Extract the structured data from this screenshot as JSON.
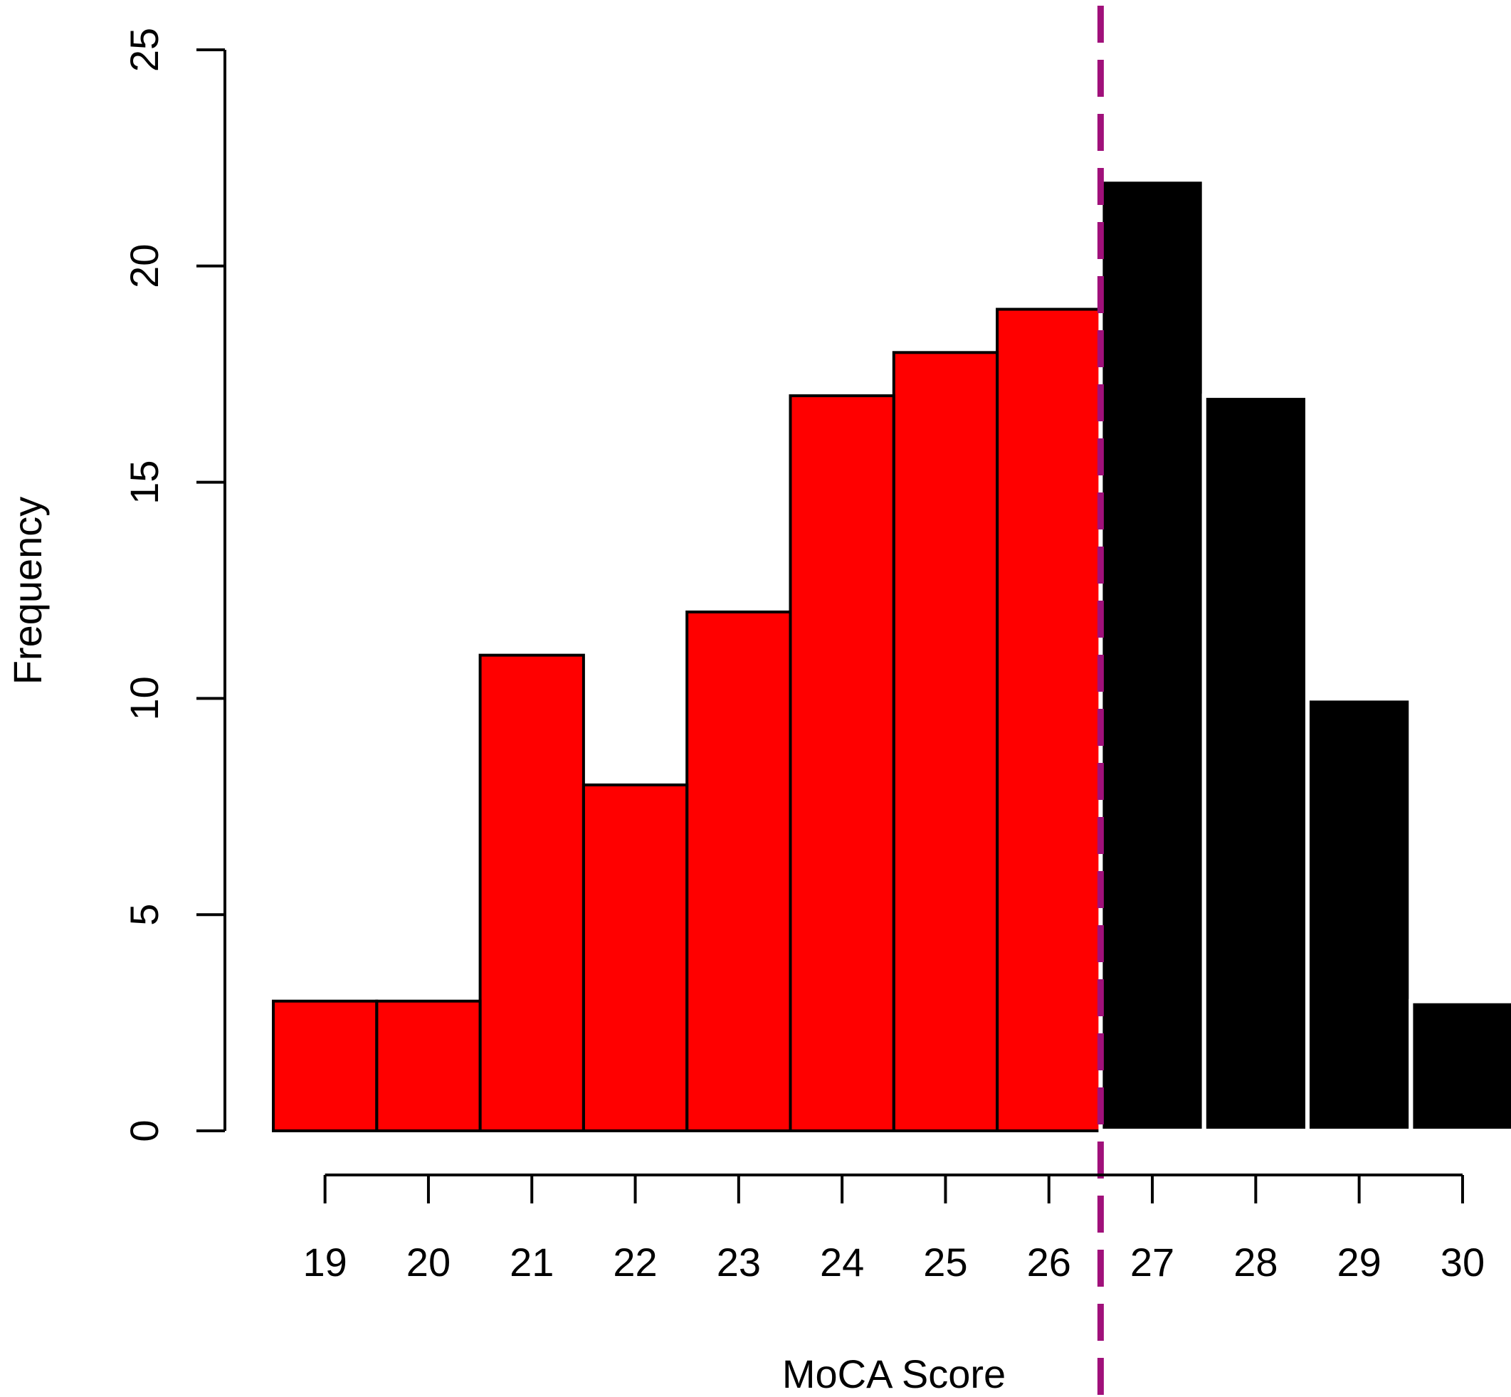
{
  "chart_data": {
    "type": "bar",
    "title": "",
    "xlabel": "MoCA Score",
    "ylabel": "Frequency",
    "categories": [
      "19",
      "20",
      "21",
      "22",
      "23",
      "24",
      "25",
      "26",
      "27",
      "28",
      "29",
      "30"
    ],
    "values": [
      3,
      3,
      11,
      8,
      12,
      17,
      18,
      19,
      22,
      17,
      10,
      3
    ],
    "bar_colors": [
      "#ff0000",
      "#ff0000",
      "#ff0000",
      "#ff0000",
      "#ff0000",
      "#ff0000",
      "#ff0000",
      "#ff0000",
      "#000000",
      "#000000",
      "#000000",
      "#000000"
    ],
    "bar_outline": "#000000",
    "yticks": [
      0,
      5,
      10,
      15,
      20,
      25
    ],
    "ylim": [
      0,
      25
    ],
    "reference_line": {
      "x": 26.5,
      "color": "#a0107a",
      "style": "dashed"
    },
    "grid": false,
    "legend": "none"
  }
}
